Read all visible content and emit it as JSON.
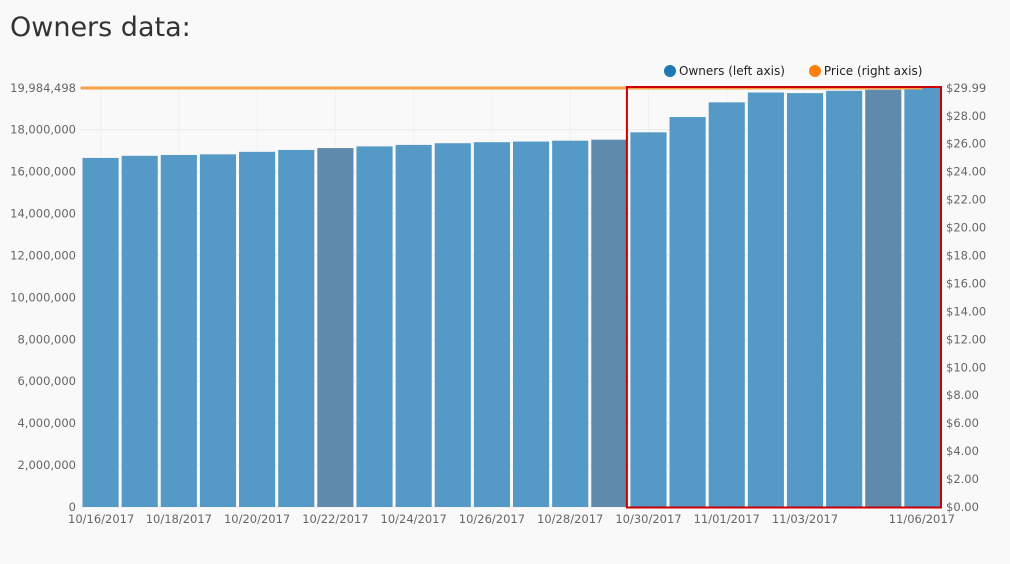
{
  "page": {
    "title": "Owners data:"
  },
  "legend": {
    "owners": {
      "label": "Owners (left axis)",
      "color": "#1f77b4"
    },
    "price": {
      "label": "Price (right axis)",
      "color": "#ff7f0e"
    }
  },
  "chart_data": {
    "type": "bar",
    "categories": [
      "10/16/2017",
      "10/17/2017",
      "10/18/2017",
      "10/19/2017",
      "10/20/2017",
      "10/21/2017",
      "10/22/2017",
      "10/23/2017",
      "10/24/2017",
      "10/25/2017",
      "10/26/2017",
      "10/27/2017",
      "10/28/2017",
      "10/29/2017",
      "10/30/2017",
      "10/31/2017",
      "11/01/2017",
      "11/02/2017",
      "11/03/2017",
      "11/04/2017",
      "11/05/2017",
      "11/06/2017"
    ],
    "x_tick_labels": [
      "10/16/2017",
      "10/18/2017",
      "10/20/2017",
      "10/22/2017",
      "10/24/2017",
      "10/26/2017",
      "10/28/2017",
      "10/30/2017",
      "11/01/2017",
      "11/03/2017",
      "11/06/2017"
    ],
    "series": [
      {
        "name": "Owners (left axis)",
        "axis": "left",
        "type": "bar",
        "values": [
          16650000,
          16750000,
          16790000,
          16820000,
          16940000,
          17030000,
          17120000,
          17200000,
          17270000,
          17350000,
          17400000,
          17430000,
          17470000,
          17520000,
          17870000,
          18600000,
          19300000,
          19770000,
          19740000,
          19850000,
          19900000,
          19984498
        ]
      },
      {
        "name": "Price (right axis)",
        "axis": "right",
        "type": "line",
        "values": [
          29.99,
          29.99,
          29.99,
          29.99,
          29.99,
          29.99,
          29.99,
          29.99,
          29.99,
          29.99,
          29.99,
          29.99,
          29.99,
          29.99,
          29.99,
          29.99,
          29.99,
          29.99,
          29.99,
          29.99,
          29.99,
          29.99
        ]
      }
    ],
    "highlighted_categories": [
      "10/22/2017",
      "10/29/2017",
      "11/05/2017"
    ],
    "y_left": {
      "min": 0,
      "max": 19984498,
      "ticks": [
        "0",
        "2,000,000",
        "4,000,000",
        "6,000,000",
        "8,000,000",
        "10,000,000",
        "12,000,000",
        "14,000,000",
        "16,000,000",
        "18,000,000",
        "19,984,498"
      ],
      "tick_values": [
        0,
        2000000,
        4000000,
        6000000,
        8000000,
        10000000,
        12000000,
        14000000,
        16000000,
        18000000,
        19984498
      ]
    },
    "y_right": {
      "min": 0,
      "max": 29.99,
      "ticks": [
        "$0.00",
        "$2.00",
        "$4.00",
        "$6.00",
        "$8.00",
        "$10.00",
        "$12.00",
        "$14.00",
        "$16.00",
        "$18.00",
        "$20.00",
        "$22.00",
        "$24.00",
        "$26.00",
        "$28.00",
        "$29.99"
      ],
      "tick_values": [
        0,
        2,
        4,
        6,
        8,
        10,
        12,
        14,
        16,
        18,
        20,
        22,
        24,
        26,
        28,
        29.99
      ]
    },
    "grid": true,
    "legend_position": "top-right",
    "colors": {
      "bar": "#5599c7",
      "bar_highlight": "#5f8aab",
      "line": "#f5a24b",
      "highlight_box": "#cc0000"
    },
    "highlight_box_range": [
      "10/30/2017",
      "11/06/2017"
    ]
  }
}
